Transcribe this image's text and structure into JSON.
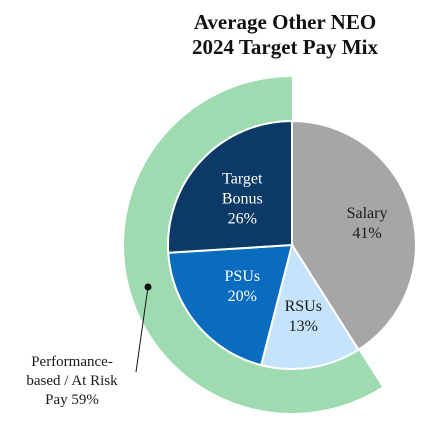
{
  "chart_data": {
    "type": "pie",
    "title_lines": [
      "Average Other NEO",
      "2024 Target Pay Mix"
    ],
    "unit": "%",
    "inner_ring": [
      {
        "label": "Salary",
        "value": 41,
        "color": "#a6a6a6",
        "text_color": "#1a1a1a"
      },
      {
        "label": "RSUs",
        "value": 13,
        "color": "#c5e3fb",
        "text_color": "#1a1a1a"
      },
      {
        "label": "PSUs",
        "value": 20,
        "color": "#0a6cbe",
        "text_color": "#ffffff"
      },
      {
        "label": "Target Bonus",
        "value": 26,
        "color": "#0b3a66",
        "text_color": "#ffffff"
      }
    ],
    "outer_ring": [
      {
        "label": "Performance-based / At Risk Pay",
        "value": 59,
        "color": "#9edbb1"
      }
    ],
    "outer_label_lines": [
      "Performance-",
      "based / At Risk",
      "Pay 59%"
    ],
    "slice_edge_color": "#ffffff"
  }
}
